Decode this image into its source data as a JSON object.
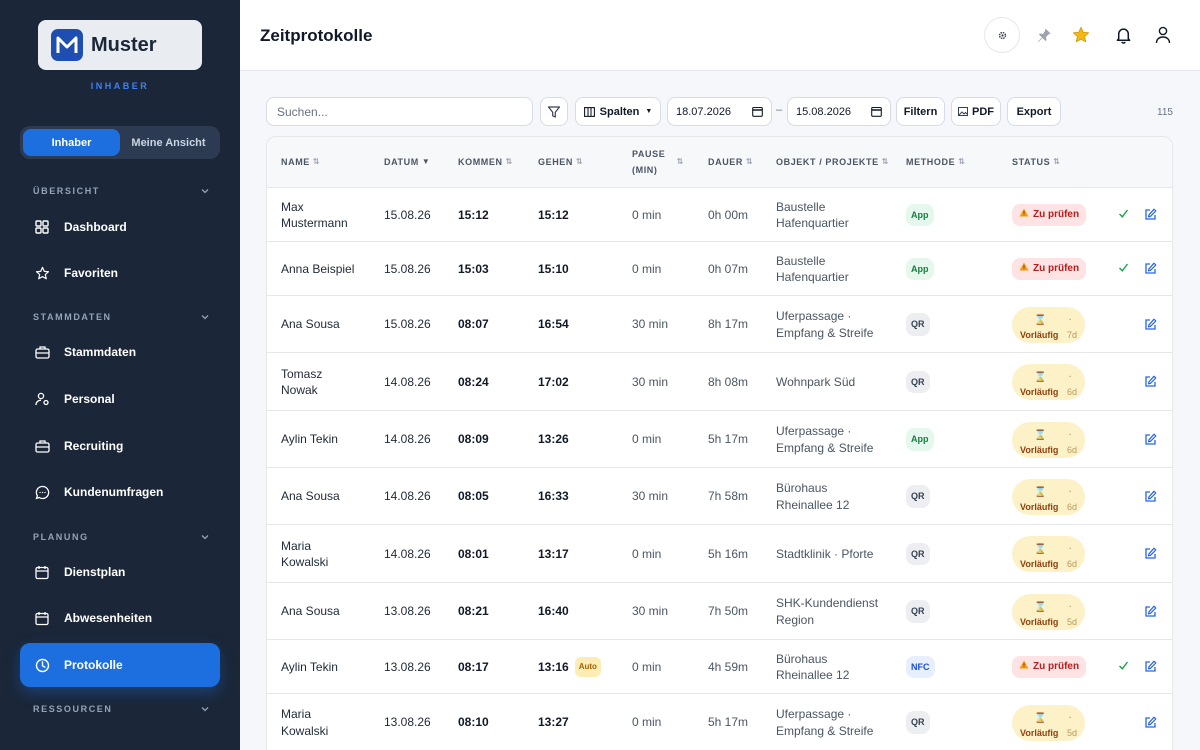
{
  "brand": {
    "name": "Muster",
    "role": "INHABER"
  },
  "view_toggle": {
    "owner": "Inhaber",
    "mine": "Meine Ansicht"
  },
  "sidebar": {
    "sections": {
      "overview": "ÜBERSICHT",
      "master": "STAMMDATEN",
      "planning": "PLANUNG",
      "resources": "RESSOURCEN"
    },
    "items": {
      "dashboard": "Dashboard",
      "favorites": "Favoriten",
      "masterdata": "Stammdaten",
      "staff": "Personal",
      "recruiting": "Recruiting",
      "surveys": "Kundenumfragen",
      "schedule": "Dienstplan",
      "absences": "Abwesenheiten",
      "logs": "Protokolle"
    }
  },
  "header": {
    "title": "Zeitprotokolle"
  },
  "toolbar": {
    "search_placeholder": "Suchen...",
    "columns_label": "Spalten",
    "date_from": "18.07.2026",
    "date_sep": "–",
    "date_to": "15.08.2026",
    "filter_label": "Filtern",
    "pdf_label": "PDF",
    "export_label": "Export",
    "count": "115"
  },
  "table": {
    "headers": {
      "name": "NAME",
      "date": "DATUM",
      "in": "KOMMEN",
      "out": "GEHEN",
      "pause1": "PAUSE",
      "pause2": "(MIN)",
      "duration": "DAUER",
      "object": "OBJEKT / PROJEKTE",
      "method": "METHODE",
      "status": "STATUS"
    },
    "status_labels": {
      "check": "Zu prüfen",
      "provisional": "Vorläufig",
      "provisional_dot": "·"
    },
    "auto_label": "Auto",
    "rows": [
      {
        "name": [
          "Max",
          "Mustermann"
        ],
        "date": "15.08.26",
        "in": "15:12",
        "out": "15:12",
        "pause": "0 min",
        "duration": "0h 00m",
        "object": [
          "Baustelle",
          "Hafenquartier"
        ],
        "method": "App",
        "status": "check"
      },
      {
        "name": [
          "Anna Beispiel"
        ],
        "date": "15.08.26",
        "in": "15:03",
        "out": "15:10",
        "pause": "0 min",
        "duration": "0h 07m",
        "object": [
          "Baustelle",
          "Hafenquartier"
        ],
        "method": "App",
        "status": "check"
      },
      {
        "name": [
          "Ana Sousa"
        ],
        "date": "15.08.26",
        "in": "08:07",
        "out": "16:54",
        "pause": "30 min",
        "duration": "8h 17m",
        "object": [
          "Uferpassage ·",
          "Empfang & Streife"
        ],
        "method": "QR",
        "status": "provisional",
        "days": "7d"
      },
      {
        "name": [
          "Tomasz",
          "Nowak"
        ],
        "date": "14.08.26",
        "in": "08:24",
        "out": "17:02",
        "pause": "30 min",
        "duration": "8h 08m",
        "object": [
          "Wohnpark Süd"
        ],
        "method": "QR",
        "status": "provisional",
        "days": "6d"
      },
      {
        "name": [
          "Aylin Tekin"
        ],
        "date": "14.08.26",
        "in": "08:09",
        "out": "13:26",
        "pause": "0 min",
        "duration": "5h 17m",
        "object": [
          "Uferpassage ·",
          "Empfang & Streife"
        ],
        "method": "App",
        "status": "provisional",
        "days": "6d"
      },
      {
        "name": [
          "Ana Sousa"
        ],
        "date": "14.08.26",
        "in": "08:05",
        "out": "16:33",
        "pause": "30 min",
        "duration": "7h 58m",
        "object": [
          "Bürohaus",
          "Rheinallee 12"
        ],
        "method": "QR",
        "status": "provisional",
        "days": "6d"
      },
      {
        "name": [
          "Maria",
          "Kowalski"
        ],
        "date": "14.08.26",
        "in": "08:01",
        "out": "13:17",
        "pause": "0 min",
        "duration": "5h 16m",
        "object": [
          "Stadtklinik · Pforte"
        ],
        "method": "QR",
        "status": "provisional",
        "days": "6d"
      },
      {
        "name": [
          "Ana Sousa"
        ],
        "date": "13.08.26",
        "in": "08:21",
        "out": "16:40",
        "pause": "30 min",
        "duration": "7h 50m",
        "object": [
          "SHK-Kundendienst",
          "Region"
        ],
        "method": "QR",
        "status": "provisional",
        "days": "5d"
      },
      {
        "name": [
          "Aylin Tekin"
        ],
        "date": "13.08.26",
        "in": "08:17",
        "out": "13:16",
        "auto": true,
        "pause": "0 min",
        "duration": "4h 59m",
        "object": [
          "Bürohaus",
          "Rheinallee 12"
        ],
        "method": "NFC",
        "status": "check"
      },
      {
        "name": [
          "Maria",
          "Kowalski"
        ],
        "date": "13.08.26",
        "in": "08:10",
        "out": "13:27",
        "pause": "0 min",
        "duration": "5h 17m",
        "object": [
          "Uferpassage ·",
          "Empfang & Streife"
        ],
        "method": "QR",
        "status": "provisional",
        "days": "5d"
      }
    ]
  },
  "colors": {
    "sidebar": "#1b2638",
    "accent": "#1d6fe0",
    "danger": "#b91c1c",
    "warning_bg": "#fdf1c7"
  },
  "icons": {
    "settings": "gear-icon",
    "pin": "pin-icon",
    "favorite": "star-icon",
    "notifications": "bell-icon",
    "account": "user-icon"
  }
}
